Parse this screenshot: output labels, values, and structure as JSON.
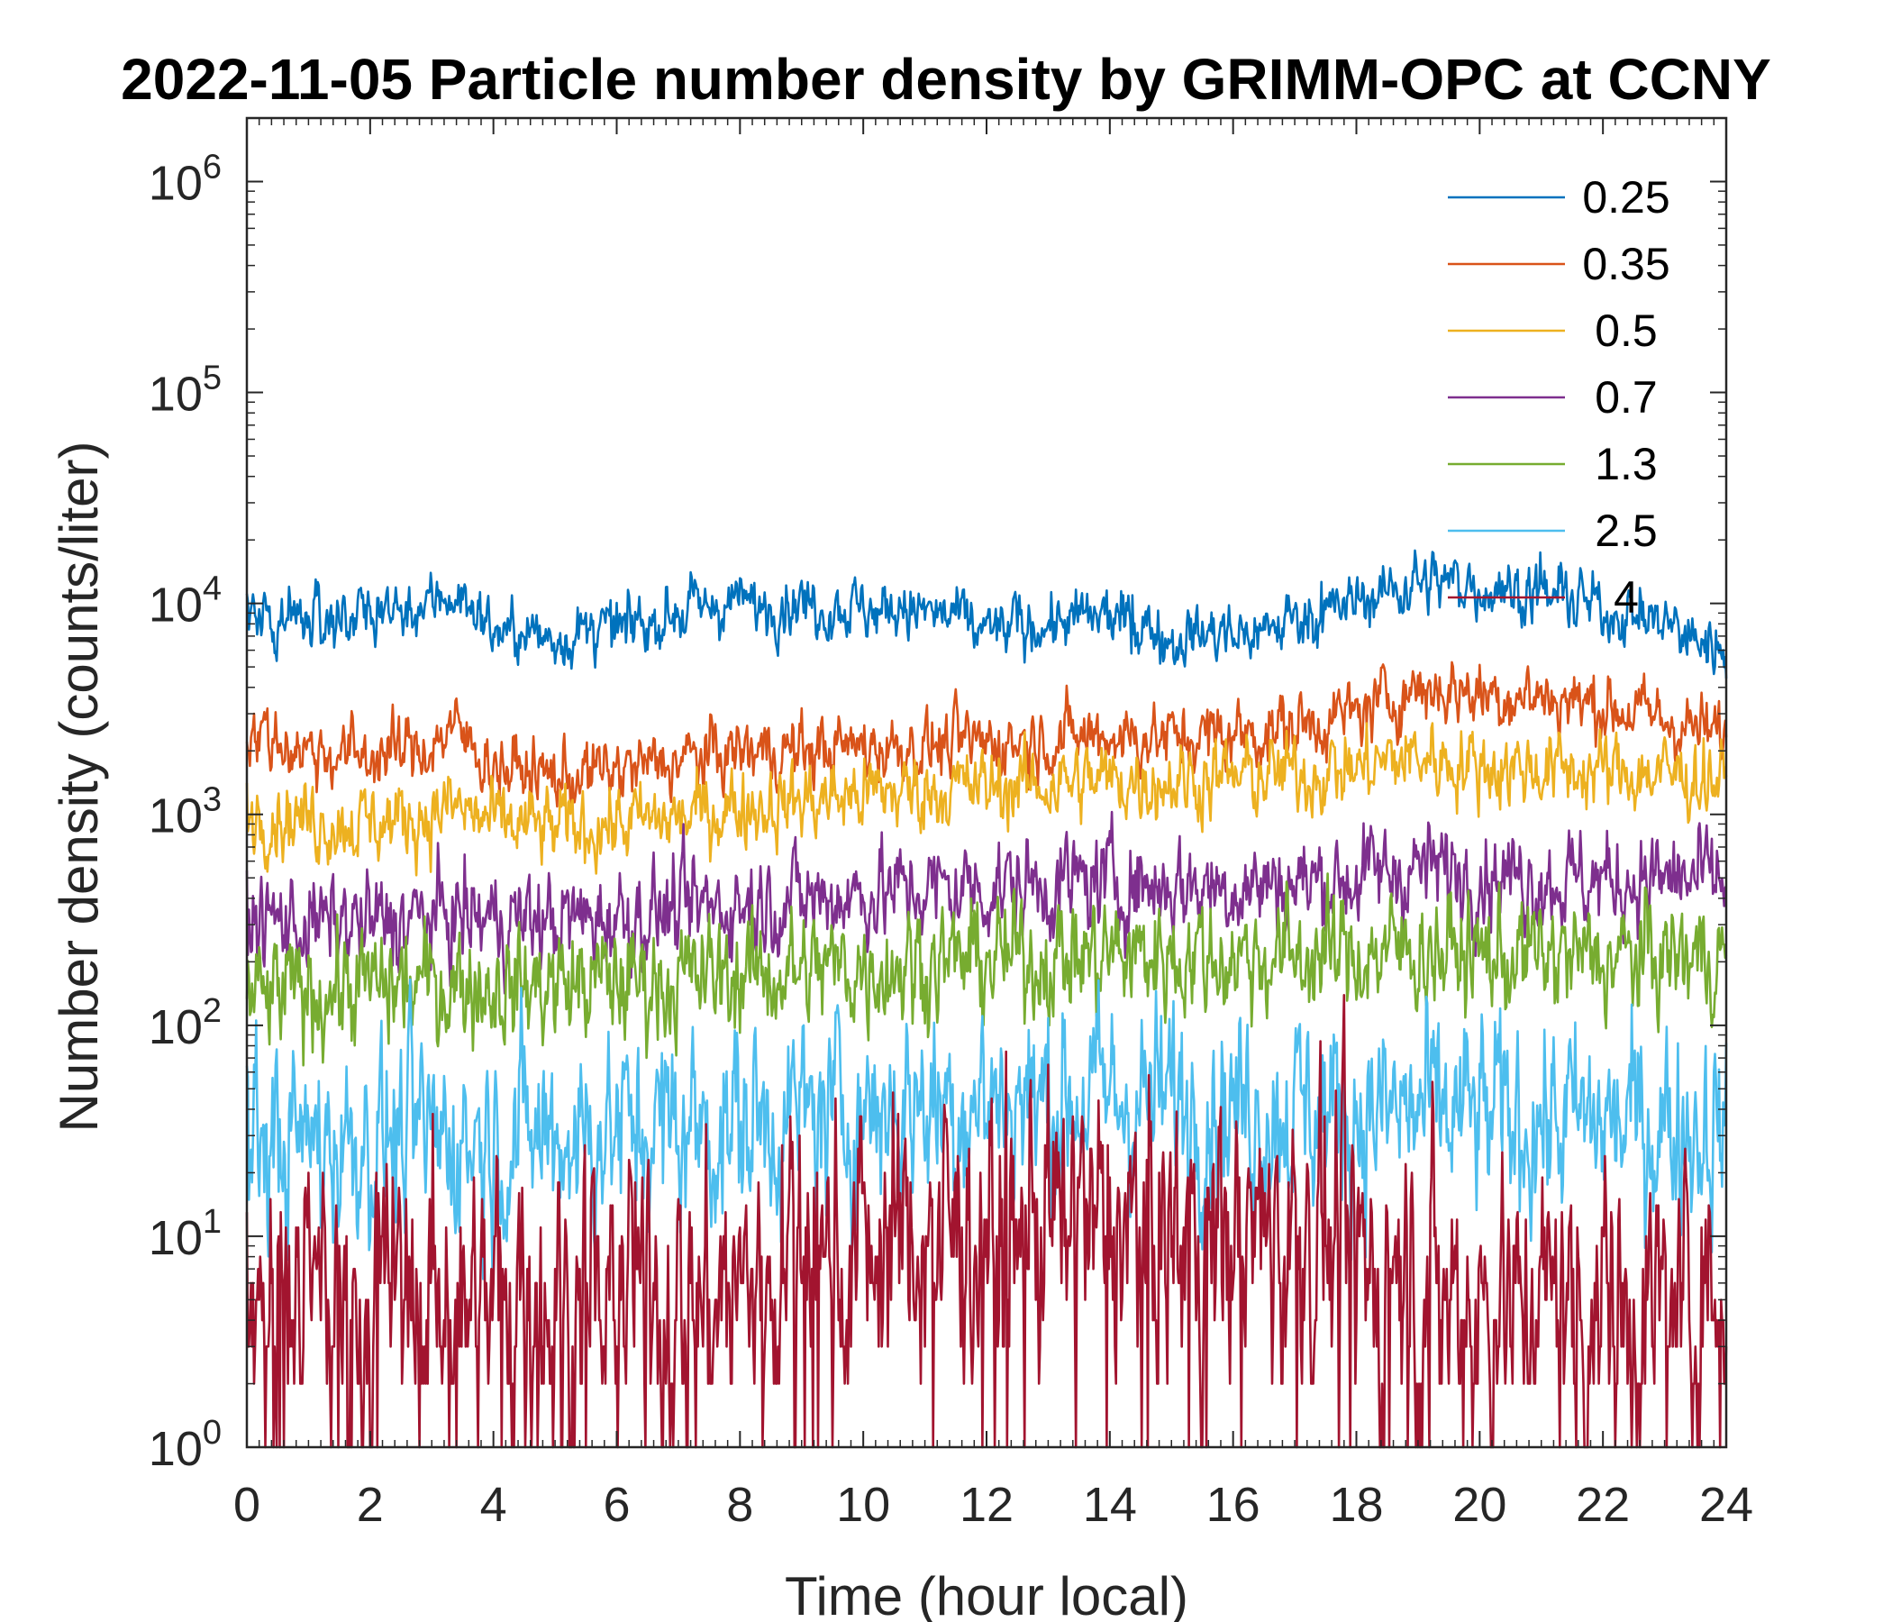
{
  "chart_data": {
    "type": "line",
    "title": "2022-11-05 Particle number density by GRIMM-OPC at CCNY",
    "xlabel": "Time (hour local)",
    "ylabel": "Number density (counts/liter)",
    "xlim": [
      0,
      24
    ],
    "xticks": [
      "0",
      "2",
      "4",
      "6",
      "8",
      "10",
      "12",
      "14",
      "16",
      "18",
      "20",
      "22",
      "24"
    ],
    "yscale": "log",
    "ylim": [
      1,
      2000000
    ],
    "ytick_base": "10",
    "ytick_exponents": [
      "0",
      "1",
      "2",
      "3",
      "4",
      "5",
      "6"
    ],
    "legend_position": "top-right",
    "x_hours": [
      0,
      1,
      2,
      3,
      3.3,
      4,
      5,
      6,
      7,
      8,
      9,
      10,
      11,
      12,
      13,
      14,
      15,
      16,
      17,
      18,
      19,
      20,
      21,
      22,
      23,
      24
    ],
    "series": [
      {
        "name": "0.25",
        "color": "#0072BD",
        "noise": 0.06,
        "values": [
          9500,
          8500,
          9000,
          10000,
          11500,
          7500,
          6800,
          7500,
          9000,
          10000,
          10000,
          9500,
          9000,
          7500,
          8000,
          8500,
          7000,
          7000,
          8500,
          10000,
          13000,
          12000,
          11000,
          9500,
          8000,
          6000
        ]
      },
      {
        "name": "0.35",
        "color": "#D95319",
        "noise": 0.07,
        "values": [
          2500,
          2000,
          1900,
          2100,
          2600,
          1700,
          1500,
          1600,
          1800,
          2000,
          2000,
          2100,
          2100,
          2200,
          2300,
          2400,
          2300,
          2400,
          2600,
          3000,
          4000,
          3800,
          3600,
          3300,
          2800,
          2300
        ]
      },
      {
        "name": "0.5",
        "color": "#EDB120",
        "noise": 0.08,
        "values": [
          1050,
          950,
          900,
          1000,
          1100,
          900,
          850,
          900,
          950,
          1100,
          1150,
          1250,
          1300,
          1350,
          1400,
          1450,
          1450,
          1500,
          1550,
          1650,
          1900,
          1700,
          1650,
          1600,
          1550,
          1450
        ]
      },
      {
        "name": "0.7",
        "color": "#7E2F8E",
        "noise": 0.1,
        "values": [
          320,
          300,
          300,
          320,
          330,
          320,
          310,
          330,
          350,
          380,
          400,
          420,
          440,
          450,
          460,
          480,
          460,
          460,
          470,
          500,
          560,
          530,
          500,
          480,
          490,
          480
        ]
      },
      {
        "name": "1.3",
        "color": "#77AC30",
        "noise": 0.12,
        "values": [
          130,
          145,
          150,
          155,
          160,
          155,
          155,
          160,
          165,
          175,
          180,
          190,
          200,
          205,
          210,
          215,
          215,
          210,
          215,
          215,
          230,
          215,
          210,
          205,
          210,
          215
        ]
      },
      {
        "name": "2.5",
        "color": "#4DBEEE",
        "noise": 0.2,
        "values": [
          28,
          28,
          29,
          30,
          30,
          30,
          31,
          32,
          33,
          34,
          36,
          40,
          44,
          44,
          45,
          45,
          44,
          42,
          40,
          38,
          38,
          36,
          35,
          34,
          34,
          34
        ]
      },
      {
        "name": "4",
        "color": "#A2142F",
        "noise": 0.28,
        "values": [
          5,
          5,
          5,
          5,
          5,
          5,
          5,
          5,
          5,
          5,
          8,
          9,
          10,
          10,
          11,
          11,
          11,
          10,
          10,
          7,
          6,
          5,
          5,
          5,
          5,
          5
        ]
      }
    ]
  }
}
